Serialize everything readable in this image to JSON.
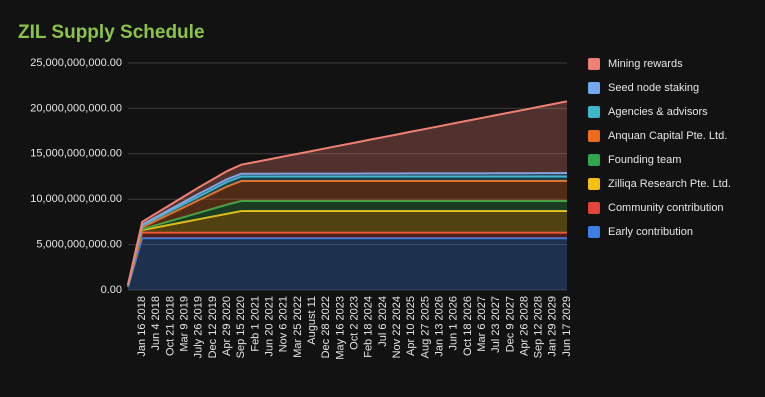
{
  "chart_data": {
    "type": "stacked_area",
    "title": "ZIL Supply Schedule",
    "categories": [
      null,
      "Jan 16 2018",
      "Jun 4 2018",
      "Oct 21 2018",
      "Mar 9 2019",
      "July 26 2019",
      "Dec 12 2019",
      "Apr 29 2020",
      "Sep 15 2020",
      "Feb 1 2021",
      "Jun 20 2021",
      "Nov 6 2021",
      "Mar 25 2022",
      "August 11",
      "Dec 28 2022",
      "May 16 2023",
      "Oct 2 2023",
      "Feb 18 2024",
      "Jul 6 2024",
      "Nov 22 2024",
      "Apr 10 2025",
      "Aug 27 2025",
      "Jan 13 2026",
      "Jun 1 2026",
      "Oct 18 2026",
      "Mar 6 2027",
      "Jul 23 2027",
      "Dec 9 2027",
      "Apr 26 2028",
      "Sep 12 2028",
      "Jan 29 2029",
      "Jun 17 2029"
    ],
    "series": [
      {
        "name": "Mining rewards",
        "color": "#f08072",
        "values": [
          50000000,
          300000000,
          400000000,
          500000000,
          600000000,
          700000000,
          800000000,
          900000000,
          1000000000,
          1300000000,
          1600000000,
          1900000000,
          2200000000,
          2500000000,
          2800000000,
          3100000000,
          3400000000,
          3700000000,
          4000000000,
          4300000000,
          4600000000,
          4900000000,
          5200000000,
          5500000000,
          5800000000,
          6100000000,
          6400000000,
          6700000000,
          7000000000,
          7300000000,
          7600000000,
          7900000000
        ]
      },
      {
        "name": "Seed node staking",
        "color": "#74a9f2",
        "values": [
          10000000,
          100000000,
          150000000,
          200000000,
          250000000,
          300000000,
          300000000,
          300000000,
          300000000,
          300000000,
          300000000,
          310000000,
          310000000,
          310000000,
          320000000,
          320000000,
          320000000,
          330000000,
          330000000,
          330000000,
          340000000,
          340000000,
          340000000,
          350000000,
          350000000,
          350000000,
          360000000,
          360000000,
          360000000,
          370000000,
          370000000,
          380000000
        ]
      },
      {
        "name": "Agencies & advisors",
        "color": "#3bb8c9",
        "values": [
          20000000,
          200000000,
          250000000,
          300000000,
          350000000,
          400000000,
          450000000,
          500000000,
          500000000,
          500000000,
          500000000,
          500000000,
          500000000,
          500000000,
          500000000,
          500000000,
          500000000,
          500000000,
          500000000,
          500000000,
          500000000,
          500000000,
          500000000,
          500000000,
          500000000,
          500000000,
          500000000,
          500000000,
          500000000,
          500000000,
          500000000,
          500000000
        ]
      },
      {
        "name": "Anquan Capital Pte. Ltd.",
        "color": "#f26b1d",
        "values": [
          50000000,
          200000000,
          500000000,
          800000000,
          1100000000,
          1400000000,
          1700000000,
          2000000000,
          2200000000,
          2200000000,
          2200000000,
          2200000000,
          2200000000,
          2200000000,
          2200000000,
          2200000000,
          2200000000,
          2200000000,
          2200000000,
          2200000000,
          2200000000,
          2200000000,
          2200000000,
          2200000000,
          2200000000,
          2200000000,
          2200000000,
          2200000000,
          2200000000,
          2200000000,
          2200000000,
          2200000000
        ]
      },
      {
        "name": "Founding team",
        "color": "#2fa84b",
        "values": [
          20000000,
          100000000,
          250000000,
          400000000,
          550000000,
          700000000,
          850000000,
          1000000000,
          1100000000,
          1100000000,
          1100000000,
          1100000000,
          1100000000,
          1100000000,
          1100000000,
          1100000000,
          1100000000,
          1100000000,
          1100000000,
          1100000000,
          1100000000,
          1100000000,
          1100000000,
          1100000000,
          1100000000,
          1100000000,
          1100000000,
          1100000000,
          1100000000,
          1100000000,
          1100000000,
          1100000000
        ]
      },
      {
        "name": "Zilliqa Research Pte. Ltd.",
        "color": "#f5c012",
        "values": [
          50000000,
          300000000,
          600000000,
          900000000,
          1200000000,
          1500000000,
          1800000000,
          2100000000,
          2400000000,
          2400000000,
          2400000000,
          2400000000,
          2400000000,
          2400000000,
          2400000000,
          2400000000,
          2400000000,
          2400000000,
          2400000000,
          2400000000,
          2400000000,
          2400000000,
          2400000000,
          2400000000,
          2400000000,
          2400000000,
          2400000000,
          2400000000,
          2400000000,
          2400000000,
          2400000000,
          2400000000
        ]
      },
      {
        "name": "Community contribution",
        "color": "#e2443a",
        "values": [
          100000000,
          600000000,
          600000000,
          600000000,
          600000000,
          600000000,
          600000000,
          600000000,
          600000000,
          600000000,
          600000000,
          600000000,
          600000000,
          600000000,
          600000000,
          600000000,
          600000000,
          600000000,
          600000000,
          600000000,
          600000000,
          600000000,
          600000000,
          600000000,
          600000000,
          600000000,
          600000000,
          600000000,
          600000000,
          600000000,
          600000000,
          600000000
        ]
      },
      {
        "name": "Early contribution",
        "color": "#3b7fe6",
        "values": [
          300000000,
          5700000000,
          5700000000,
          5700000000,
          5700000000,
          5700000000,
          5700000000,
          5700000000,
          5700000000,
          5700000000,
          5700000000,
          5700000000,
          5700000000,
          5700000000,
          5700000000,
          5700000000,
          5700000000,
          5700000000,
          5700000000,
          5700000000,
          5700000000,
          5700000000,
          5700000000,
          5700000000,
          5700000000,
          5700000000,
          5700000000,
          5700000000,
          5700000000,
          5700000000,
          5700000000,
          5700000000
        ]
      }
    ],
    "ylim": [
      0,
      25000000000
    ],
    "yticks": [
      {
        "value": 0,
        "label": "0.00"
      },
      {
        "value": 5000000000,
        "label": "5,000,000,000.00"
      },
      {
        "value": 10000000000,
        "label": "10,000,000,000.00"
      },
      {
        "value": 15000000000,
        "label": "15,000,000,000.00"
      },
      {
        "value": 20000000000,
        "label": "20,000,000,000.00"
      },
      {
        "value": 25000000000,
        "label": "25,000,000,000.00"
      }
    ],
    "grid": true,
    "legend": "right"
  }
}
